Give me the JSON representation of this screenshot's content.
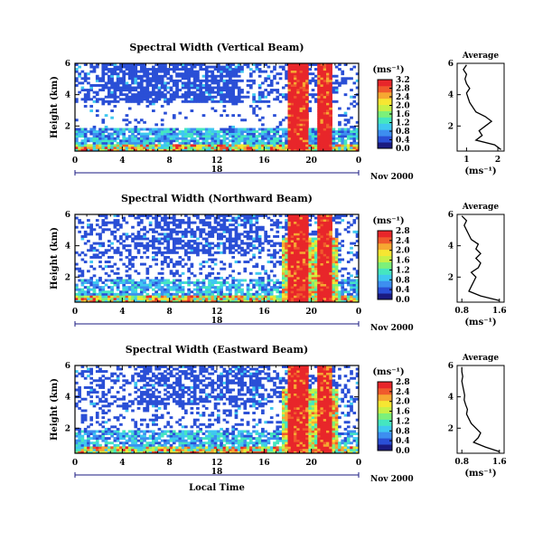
{
  "colormap": [
    "#1a1a80",
    "#2a4fd6",
    "#3d8ef0",
    "#3fc8f0",
    "#45e6c0",
    "#7cf07a",
    "#c8f046",
    "#f6e632",
    "#f6a832",
    "#f05a2c",
    "#e8262a"
  ],
  "chart_data": [
    {
      "type": "heatmap",
      "title": "Spectral Width (Vertical Beam)",
      "ylabel": "Height (km)",
      "y_ticks": [
        "2",
        "4",
        "6"
      ],
      "x_ticks": [
        "0",
        "4",
        "8",
        "12",
        "16",
        "20",
        "0"
      ],
      "x_secondary_label": "18",
      "date_label": "Nov 2000",
      "xlabel": "",
      "xlim": [
        0,
        24
      ],
      "ylim": [
        0.4,
        6
      ],
      "colorbar": {
        "unit": "(ms⁻¹)",
        "ticks": [
          "0.0",
          "0.4",
          "0.8",
          "1.2",
          "1.6",
          "2.0",
          "2.4",
          "2.8",
          "3.2"
        ],
        "range": [
          0,
          3.2
        ]
      },
      "average": {
        "title": "Average",
        "xlabel": "(ms⁻¹)",
        "x_ticks": [
          "1",
          "2"
        ],
        "xlim": [
          0.7,
          2.2
        ],
        "y_ticks": [
          "2",
          "4",
          "6"
        ],
        "y": [
          0.5,
          0.8,
          1.1,
          1.4,
          1.7,
          2.0,
          2.3,
          2.6,
          2.9,
          3.2,
          3.5,
          3.8,
          4.1,
          4.4,
          4.7,
          5.0,
          5.3,
          5.6,
          5.9
        ],
        "x": [
          2.1,
          1.9,
          1.3,
          1.5,
          1.4,
          1.6,
          1.8,
          1.6,
          1.3,
          1.2,
          1.1,
          1.05,
          1.0,
          1.1,
          1.0,
          0.95,
          1.0,
          0.9,
          1.0
        ]
      }
    },
    {
      "type": "heatmap",
      "title": "Spectral Width (Northward Beam)",
      "ylabel": "Height (km)",
      "y_ticks": [
        "2",
        "4",
        "6"
      ],
      "x_ticks": [
        "0",
        "4",
        "8",
        "12",
        "16",
        "20",
        "0"
      ],
      "x_secondary_label": "18",
      "date_label": "Nov 2000",
      "xlabel": "",
      "xlim": [
        0,
        24
      ],
      "ylim": [
        0.4,
        6
      ],
      "colorbar": {
        "unit": "(ms⁻¹)",
        "ticks": [
          "0.0",
          "0.4",
          "0.8",
          "1.2",
          "1.6",
          "2.0",
          "2.4",
          "2.8"
        ],
        "range": [
          0,
          2.8
        ]
      },
      "average": {
        "title": "Average",
        "xlabel": "(ms⁻¹)",
        "x_ticks": [
          "0.8",
          "1.6"
        ],
        "xlim": [
          0.7,
          1.7
        ],
        "y_ticks": [
          "2",
          "4",
          "6"
        ],
        "y": [
          0.5,
          0.8,
          1.1,
          1.4,
          1.7,
          2.0,
          2.3,
          2.6,
          2.9,
          3.2,
          3.5,
          3.8,
          4.1,
          4.4,
          4.7,
          5.0,
          5.3,
          5.6,
          5.9
        ],
        "x": [
          1.6,
          1.2,
          0.95,
          1.0,
          1.05,
          1.1,
          1.0,
          1.15,
          1.2,
          1.1,
          1.2,
          1.1,
          1.15,
          1.0,
          0.95,
          0.9,
          0.85,
          0.9,
          0.8
        ]
      }
    },
    {
      "type": "heatmap",
      "title": "Spectral Width (Eastward Beam)",
      "ylabel": "Height (km)",
      "y_ticks": [
        "2",
        "4",
        "6"
      ],
      "x_ticks": [
        "0",
        "4",
        "8",
        "12",
        "16",
        "20",
        "0"
      ],
      "x_secondary_label": "18",
      "date_label": "Nov 2000",
      "xlabel": "Local Time",
      "xlim": [
        0,
        24
      ],
      "ylim": [
        0.4,
        6
      ],
      "colorbar": {
        "unit": "(ms⁻¹)",
        "ticks": [
          "0.0",
          "0.4",
          "0.8",
          "1.2",
          "1.6",
          "2.0",
          "2.4",
          "2.8"
        ],
        "range": [
          0,
          2.8
        ]
      },
      "average": {
        "title": "Average",
        "xlabel": "(ms⁻¹)",
        "x_ticks": [
          "0.8",
          "1.6"
        ],
        "xlim": [
          0.7,
          1.7
        ],
        "y_ticks": [
          "2",
          "4",
          "6"
        ],
        "y": [
          0.5,
          0.8,
          1.1,
          1.4,
          1.7,
          2.0,
          2.3,
          2.6,
          2.9,
          3.2,
          3.5,
          3.8,
          4.1,
          4.4,
          4.7,
          5.0,
          5.3,
          5.6,
          5.9
        ],
        "x": [
          1.6,
          1.3,
          1.05,
          1.15,
          1.2,
          1.1,
          1.0,
          0.95,
          0.9,
          0.92,
          0.88,
          0.85,
          0.86,
          0.84,
          0.82,
          0.8,
          0.82,
          0.8,
          0.8
        ]
      }
    }
  ]
}
